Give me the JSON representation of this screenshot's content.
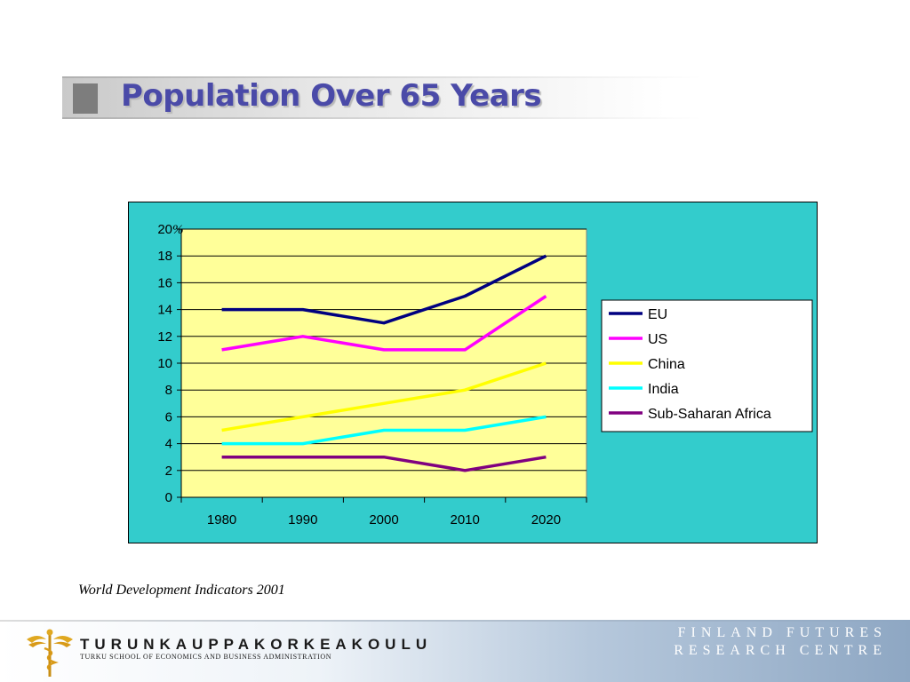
{
  "slide": {
    "title": "Population Over 65 Years",
    "source": "World Development Indicators 2001"
  },
  "footer": {
    "university": "TURUNKAUPPAKORKEAKOULU",
    "university_sub": "TURKU SCHOOL OF ECONOMICS AND BUSINESS ADMINISTRATION",
    "centre_line1": "FINLAND FUTURES",
    "centre_line2": "RESEARCH CENTRE"
  },
  "chart_data": {
    "type": "line",
    "title": "",
    "xlabel": "",
    "ylabel": "%",
    "x": [
      "1980",
      "1990",
      "2000",
      "2010",
      "2020"
    ],
    "ylim": [
      0,
      20
    ],
    "yticks": [
      0,
      2,
      4,
      6,
      8,
      10,
      12,
      14,
      16,
      18,
      20
    ],
    "grid": "horizontal",
    "legend": "right",
    "plot_background": "#ffff99",
    "chart_background": "#33cccc",
    "series": [
      {
        "name": "EU",
        "values": [
          14,
          14,
          13,
          15,
          18
        ],
        "color": "#000080"
      },
      {
        "name": "US",
        "values": [
          11,
          12,
          11,
          11,
          15
        ],
        "color": "#ff00ff"
      },
      {
        "name": "China",
        "values": [
          5,
          6,
          7,
          8,
          10
        ],
        "color": "#ffff00"
      },
      {
        "name": "India",
        "values": [
          4,
          4,
          5,
          5,
          6
        ],
        "color": "#00ffff"
      },
      {
        "name": "Sub-Saharan Africa",
        "values": [
          3,
          3,
          3,
          2,
          3
        ],
        "color": "#800080"
      }
    ]
  }
}
